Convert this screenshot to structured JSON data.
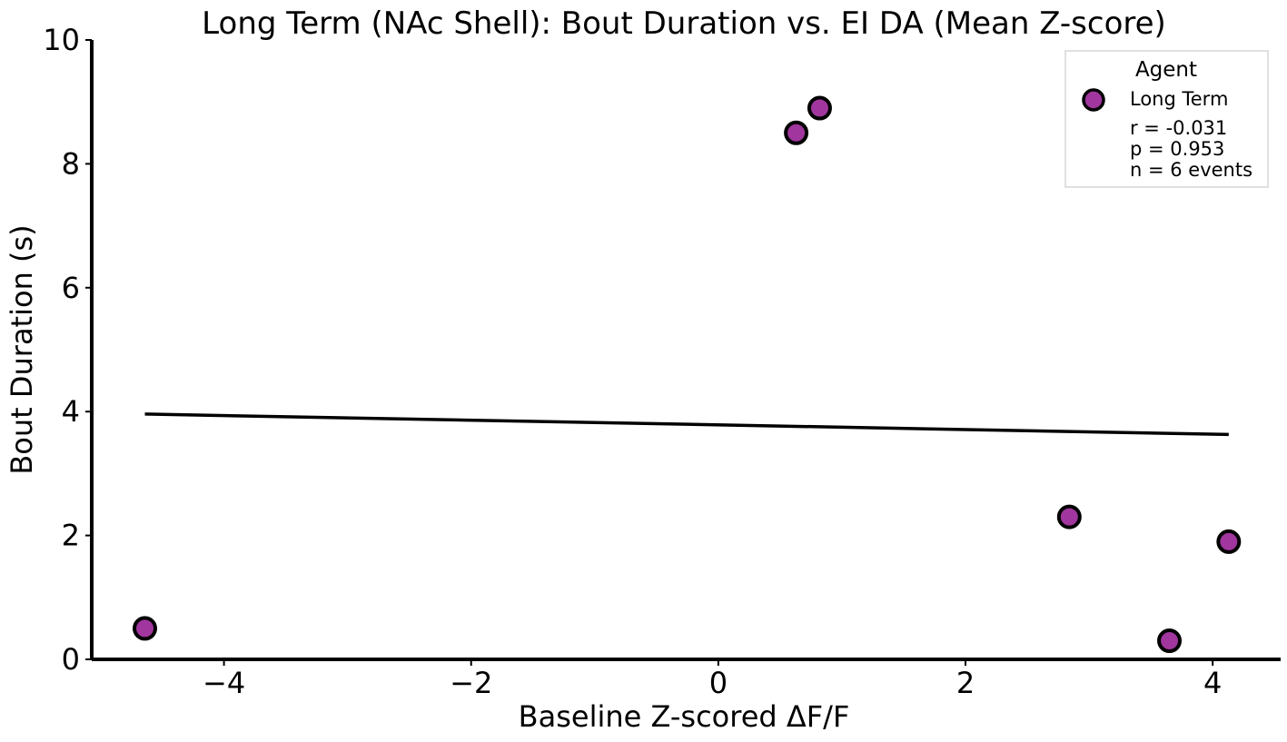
{
  "chart_data": {
    "type": "scatter",
    "title": "Long Term (NAc Shell): Bout Duration vs. EI DA (Mean Z-score)",
    "xlabel": "Baseline Z-scored ΔF/F",
    "ylabel": "Bout Duration (s)",
    "xlim": [
      -5.07,
      4.55
    ],
    "ylim": [
      0,
      10
    ],
    "x_ticks": [
      -4,
      -2,
      0,
      2,
      4
    ],
    "y_ticks": [
      0,
      2,
      4,
      6,
      8,
      10
    ],
    "x_tick_labels": [
      "−4",
      "−2",
      "0",
      "2",
      "4"
    ],
    "y_tick_labels": [
      "0",
      "2",
      "4",
      "6",
      "8",
      "10"
    ],
    "grid": false,
    "series": [
      {
        "name": "Long Term",
        "color": "#a0369e",
        "edge_color": "#000000",
        "points": [
          {
            "x": -4.64,
            "y": 0.5
          },
          {
            "x": 0.63,
            "y": 8.5
          },
          {
            "x": 0.82,
            "y": 8.9
          },
          {
            "x": 2.84,
            "y": 2.3
          },
          {
            "x": 3.65,
            "y": 0.3
          },
          {
            "x": 4.13,
            "y": 1.9
          }
        ]
      }
    ],
    "fit_line": {
      "x": [
        -4.64,
        4.13
      ],
      "y": [
        3.96,
        3.63
      ],
      "color": "#000000"
    },
    "legend": {
      "title": "Agent",
      "placement": "upper right",
      "entries": [
        "Long Term"
      ],
      "stats": [
        "r = -0.031",
        "p = 0.953",
        "n = 6 events"
      ]
    }
  }
}
